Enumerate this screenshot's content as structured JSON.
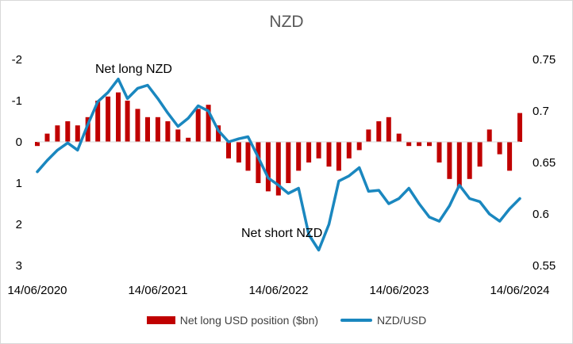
{
  "chart_data": {
    "type": "bar+line",
    "title": "NZD",
    "x_tick_labels": [
      "14/06/2020",
      "14/06/2021",
      "14/06/2022",
      "14/06/2023",
      "14/06/2024"
    ],
    "left_axis": {
      "ticks": [
        "-2",
        "-1",
        "0",
        "1",
        "2",
        "3"
      ],
      "range": [
        -2,
        3
      ],
      "inverted": true
    },
    "right_axis": {
      "ticks": [
        "0.75",
        "0.7",
        "0.65",
        "0.6",
        "0.55"
      ],
      "range": [
        0.55,
        0.75
      ]
    },
    "grid": false,
    "legend_position": "bottom",
    "annotations": [
      "Net long NZD",
      "Net short NZD"
    ],
    "series": [
      {
        "name": "Net long USD position ($bn)",
        "kind": "bar",
        "axis": "left",
        "color": "#c00000",
        "x": [
          "2020-06-14",
          "2020-07-14",
          "2020-08-14",
          "2020-09-14",
          "2020-10-14",
          "2020-11-14",
          "2020-12-14",
          "2021-01-14",
          "2021-02-14",
          "2021-03-14",
          "2021-04-14",
          "2021-05-14",
          "2021-06-14",
          "2021-07-14",
          "2021-08-14",
          "2021-09-14",
          "2021-10-14",
          "2021-11-14",
          "2021-12-14",
          "2022-01-14",
          "2022-02-14",
          "2022-03-14",
          "2022-04-14",
          "2022-05-14",
          "2022-06-14",
          "2022-07-14",
          "2022-08-14",
          "2022-09-14",
          "2022-10-14",
          "2022-11-14",
          "2022-12-14",
          "2023-01-14",
          "2023-02-14",
          "2023-03-14",
          "2023-04-14",
          "2023-05-14",
          "2023-06-14",
          "2023-07-14",
          "2023-08-14",
          "2023-09-14",
          "2023-10-14",
          "2023-11-14",
          "2023-12-14",
          "2024-01-14",
          "2024-02-14",
          "2024-03-14",
          "2024-04-14",
          "2024-05-14",
          "2024-06-14"
        ],
        "values": [
          0.1,
          -0.2,
          -0.4,
          -0.5,
          -0.4,
          -0.6,
          -1.0,
          -1.1,
          -1.2,
          -1.0,
          -0.8,
          -0.6,
          -0.6,
          -0.5,
          -0.3,
          -0.1,
          -0.8,
          -0.9,
          -0.4,
          0.4,
          0.5,
          0.7,
          1.0,
          1.2,
          1.3,
          1.0,
          0.7,
          0.5,
          0.4,
          0.6,
          0.7,
          0.4,
          0.2,
          -0.3,
          -0.5,
          -0.6,
          -0.2,
          0.1,
          0.1,
          0.1,
          0.5,
          0.9,
          1.1,
          0.9,
          0.6,
          -0.3,
          0.3,
          0.7,
          -0.7
        ]
      },
      {
        "name": "NZD/USD",
        "kind": "line",
        "axis": "right",
        "color": "#1a87bf",
        "x": [
          "2020-06-14",
          "2020-07-14",
          "2020-08-14",
          "2020-09-14",
          "2020-10-14",
          "2020-11-14",
          "2020-12-14",
          "2021-01-14",
          "2021-02-14",
          "2021-03-14",
          "2021-04-14",
          "2021-05-14",
          "2021-06-14",
          "2021-07-14",
          "2021-08-14",
          "2021-09-14",
          "2021-10-14",
          "2021-11-14",
          "2021-12-14",
          "2022-01-14",
          "2022-02-14",
          "2022-03-14",
          "2022-04-14",
          "2022-05-14",
          "2022-06-14",
          "2022-07-14",
          "2022-08-14",
          "2022-09-14",
          "2022-10-14",
          "2022-11-14",
          "2022-12-14",
          "2023-01-14",
          "2023-02-14",
          "2023-03-14",
          "2023-04-14",
          "2023-05-14",
          "2023-06-14",
          "2023-07-14",
          "2023-08-14",
          "2023-09-14",
          "2023-10-14",
          "2023-11-14",
          "2023-12-14",
          "2024-01-14",
          "2024-02-14",
          "2024-03-14",
          "2024-04-14",
          "2024-05-14",
          "2024-06-14"
        ],
        "values": [
          0.641,
          0.652,
          0.662,
          0.669,
          0.662,
          0.687,
          0.709,
          0.718,
          0.731,
          0.712,
          0.722,
          0.725,
          0.712,
          0.698,
          0.685,
          0.693,
          0.705,
          0.7,
          0.681,
          0.67,
          0.673,
          0.675,
          0.655,
          0.635,
          0.628,
          0.62,
          0.625,
          0.58,
          0.565,
          0.59,
          0.632,
          0.637,
          0.645,
          0.622,
          0.623,
          0.61,
          0.615,
          0.625,
          0.61,
          0.597,
          0.593,
          0.608,
          0.628,
          0.615,
          0.612,
          0.6,
          0.593,
          0.605,
          0.615
        ]
      }
    ]
  }
}
